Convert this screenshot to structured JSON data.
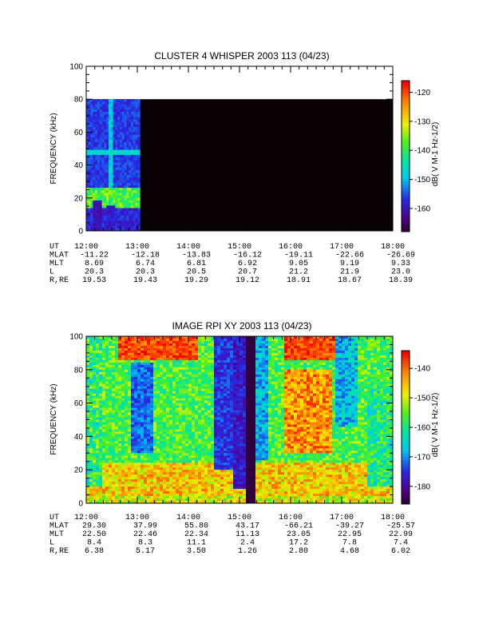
{
  "chart_data": [
    {
      "type": "heatmap",
      "title": "CLUSTER 4 WHISPER 2003 113 (04/23)",
      "ylabel": "FREQUENCY (kHz)",
      "ylim": [
        0,
        100
      ],
      "yticks": [
        "0",
        "20",
        "40",
        "60",
        "80",
        "100"
      ],
      "x_ticks": [
        "12:00",
        "13:00",
        "14:00",
        "15:00",
        "16:00",
        "17:00",
        "18:00"
      ],
      "xlim_hours": [
        12,
        18
      ],
      "data_extent": {
        "x_hours": [
          12.0,
          13.05
        ],
        "freq_khz": [
          0,
          80
        ]
      },
      "no_data_color": "#0a0306",
      "features": [
        {
          "name": "line",
          "freq_khz": 48
        },
        {
          "name": "band",
          "freq_khz": [
            14,
            26
          ]
        }
      ],
      "colorbar": {
        "label": "dB( V M-1 Hz-1/2)",
        "range": [
          -168,
          -116
        ],
        "ticks": [
          "-120",
          "-130",
          "-140",
          "-150",
          "-160"
        ],
        "tick_values": [
          -120,
          -130,
          -140,
          -150,
          -160
        ]
      },
      "ephemeris": {
        "rows": [
          {
            "label": "UT",
            "values": [
              "12:00",
              "13:00",
              "14:00",
              "15:00",
              "16:00",
              "17:00",
              "18:00"
            ]
          },
          {
            "label": "MLAT",
            "values": [
              "-11.22",
              "-12.18",
              "-13.83",
              "-16.12",
              "-19.11",
              "-22.66",
              "-26.69"
            ]
          },
          {
            "label": "MLT",
            "values": [
              "8.69",
              "6.74",
              "6.81",
              "6.92",
              "9.05",
              "9.19",
              "9.33"
            ]
          },
          {
            "label": "L",
            "values": [
              "20.3",
              "20.3",
              "20.5",
              "20.7",
              "21.2",
              "21.9",
              "23.0"
            ]
          },
          {
            "label": "R,RE",
            "values": [
              "19.53",
              "19.43",
              "19.29",
              "19.12",
              "18.91",
              "18.67",
              "18.39"
            ]
          }
        ]
      }
    },
    {
      "type": "heatmap",
      "title": "IMAGE RPI XY 2003 113 (04/23)",
      "ylabel": "FREQUENCY (kHz)",
      "ylim": [
        0,
        100
      ],
      "yticks": [
        "0",
        "20",
        "40",
        "60",
        "80",
        "100"
      ],
      "x_ticks": [
        "12:00",
        "13:00",
        "14:00",
        "15:00",
        "16:00",
        "17:00",
        "18:00"
      ],
      "xlim_hours": [
        12,
        18
      ],
      "data_gap_hours": [
        15.1,
        15.32
      ],
      "overlay_peak": {
        "time_hours": 15.2,
        "freq_khz": 13
      },
      "colorbar": {
        "label": "dB( V M-1 Hz-1/2)",
        "range": [
          -186,
          -134
        ],
        "ticks": [
          "-140",
          "-150",
          "-160",
          "-170",
          "-180"
        ],
        "tick_values": [
          -140,
          -150,
          -160,
          -170,
          -180
        ]
      },
      "ephemeris": {
        "rows": [
          {
            "label": "UT",
            "values": [
              "12:00",
              "13:00",
              "14:00",
              "15:00",
              "16:00",
              "17:00",
              "18:00"
            ]
          },
          {
            "label": "MLAT",
            "values": [
              "29.30",
              "37.99",
              "55.80",
              "43.17",
              "-66.21",
              "-39.27",
              "-25.57"
            ]
          },
          {
            "label": "MLT",
            "values": [
              "22.50",
              "22.46",
              "22.34",
              "11.13",
              "23.05",
              "22.95",
              "22.99"
            ]
          },
          {
            "label": "L",
            "values": [
              "8.4",
              "8.3",
              "11.1",
              "2.4",
              "17.2",
              "7.8",
              "7.4"
            ]
          },
          {
            "label": "R,RE",
            "values": [
              "6.38",
              "5.17",
              "3.50",
              "1.26",
              "2.80",
              "4.68",
              "6.02"
            ]
          }
        ]
      }
    }
  ]
}
